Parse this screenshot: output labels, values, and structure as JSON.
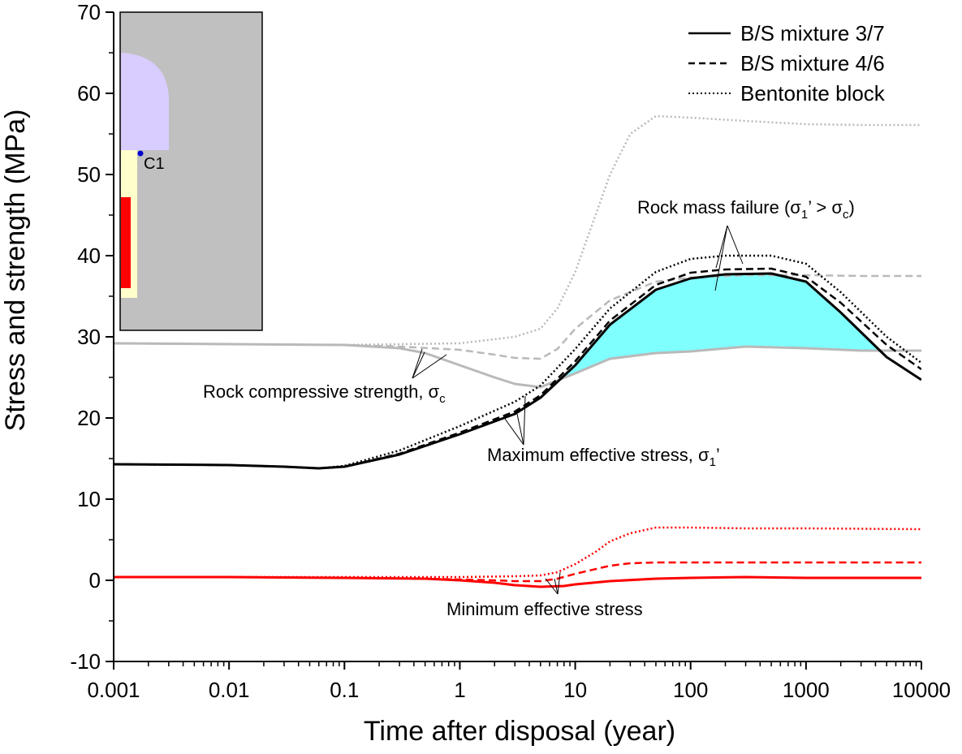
{
  "chart_data": {
    "type": "line",
    "title": "",
    "xlabel": "Time after disposal (year)",
    "ylabel": "Stress and strength (MPa)",
    "xscale": "log",
    "xlim": [
      0.001,
      10000
    ],
    "ylim": [
      -10,
      70
    ],
    "x_ticks": [
      0.001,
      0.01,
      0.1,
      1,
      10,
      100,
      1000,
      10000
    ],
    "x_tick_labels": [
      "0.001",
      "0.01",
      "0.1",
      "1",
      "10",
      "100",
      "1000",
      "10000"
    ],
    "y_ticks": [
      -10,
      0,
      10,
      20,
      30,
      40,
      50,
      60,
      70
    ],
    "y_tick_labels": [
      "-10",
      "0",
      "10",
      "20",
      "30",
      "40",
      "50",
      "60",
      "70"
    ],
    "legend_position": "top-right",
    "legend": [
      {
        "label": "B/S mixture 3/7",
        "style": "solid"
      },
      {
        "label": "B/S mixture 4/6",
        "style": "dashed"
      },
      {
        "label": "Bentonite block",
        "style": "dotted"
      }
    ],
    "colors": {
      "max_stress": "#000000",
      "strength": "#b9b9b9",
      "min_stress": "#ff0000",
      "failure_fill": "#80ffff",
      "inset_rock": "#c0c0c0",
      "inset_buffer": "#d9ccff",
      "inset_backfill": "#ffffcc",
      "inset_canister": "#ff0000",
      "inset_point": "#0000cc"
    },
    "series": [
      {
        "group": "max_effective_stress",
        "style": "solid",
        "x": [
          0.001,
          0.01,
          0.03,
          0.06,
          0.1,
          0.3,
          1,
          3,
          5,
          10,
          20,
          50,
          100,
          200,
          500,
          1000,
          2000,
          5000,
          10000
        ],
        "y": [
          14.3,
          14.2,
          14.0,
          13.8,
          14.0,
          15.5,
          18.0,
          20.5,
          22.5,
          26.5,
          31.5,
          35.8,
          37.2,
          37.7,
          37.8,
          36.8,
          33.0,
          27.5,
          24.7
        ]
      },
      {
        "group": "max_effective_stress",
        "style": "dashed",
        "x": [
          0.001,
          0.01,
          0.03,
          0.06,
          0.1,
          0.3,
          1,
          3,
          5,
          10,
          20,
          50,
          100,
          200,
          500,
          1000,
          2000,
          5000,
          10000
        ],
        "y": [
          14.3,
          14.2,
          14.0,
          13.8,
          14.0,
          15.6,
          18.2,
          20.8,
          22.8,
          27.0,
          32.0,
          36.4,
          37.9,
          38.3,
          38.4,
          37.4,
          34.2,
          29.0,
          26.0
        ]
      },
      {
        "group": "max_effective_stress",
        "style": "dotted",
        "x": [
          0.001,
          0.01,
          0.03,
          0.06,
          0.1,
          0.3,
          1,
          3,
          5,
          10,
          20,
          50,
          100,
          200,
          500,
          1000,
          2000,
          5000,
          10000
        ],
        "y": [
          14.3,
          14.2,
          14.0,
          13.8,
          14.1,
          16.0,
          19.0,
          22.0,
          24.0,
          28.5,
          33.5,
          38.0,
          39.6,
          40.0,
          40.0,
          39.0,
          35.5,
          30.0,
          26.8
        ]
      },
      {
        "group": "rock_compressive_strength",
        "style": "solid",
        "x": [
          0.001,
          0.01,
          0.1,
          0.3,
          0.5,
          1,
          2,
          3,
          5,
          10,
          20,
          50,
          100,
          300,
          1000,
          3000,
          10000
        ],
        "y": [
          29.2,
          29.1,
          29.0,
          28.6,
          28.0,
          26.5,
          25.0,
          24.2,
          23.8,
          25.5,
          27.3,
          28.0,
          28.2,
          28.8,
          28.6,
          28.3,
          28.3
        ]
      },
      {
        "group": "rock_compressive_strength",
        "style": "dashed",
        "x": [
          0.001,
          0.01,
          0.1,
          0.3,
          1,
          2,
          3,
          5,
          7,
          10,
          20,
          50,
          100,
          300,
          1000,
          3000,
          10000
        ],
        "y": [
          29.2,
          29.1,
          29.0,
          28.8,
          28.4,
          27.8,
          27.4,
          27.3,
          28.5,
          31.0,
          34.5,
          36.8,
          37.3,
          37.6,
          37.6,
          37.5,
          37.5
        ]
      },
      {
        "group": "rock_compressive_strength",
        "style": "dotted",
        "x": [
          0.001,
          0.01,
          0.1,
          1,
          3,
          5,
          7,
          10,
          15,
          20,
          30,
          50,
          100,
          300,
          1000,
          3000,
          10000
        ],
        "y": [
          29.2,
          29.1,
          29.0,
          29.2,
          30.0,
          31.0,
          33.5,
          38.0,
          45.0,
          50.0,
          55.0,
          57.2,
          57.0,
          56.6,
          56.2,
          56.1,
          56.1
        ]
      },
      {
        "group": "min_effective_stress",
        "style": "solid",
        "x": [
          0.001,
          0.01,
          0.1,
          0.5,
          1,
          2,
          3,
          5,
          8,
          10,
          20,
          50,
          100,
          300,
          1000,
          10000
        ],
        "y": [
          0.4,
          0.4,
          0.3,
          0.2,
          0.0,
          -0.3,
          -0.6,
          -0.8,
          -0.7,
          -0.5,
          -0.1,
          0.2,
          0.3,
          0.4,
          0.3,
          0.3
        ]
      },
      {
        "group": "min_effective_stress",
        "style": "dashed",
        "x": [
          0.001,
          0.01,
          0.1,
          0.5,
          1,
          2,
          3,
          5,
          7,
          10,
          20,
          30,
          50,
          100,
          300,
          1000,
          10000
        ],
        "y": [
          0.4,
          0.4,
          0.3,
          0.2,
          0.1,
          0.0,
          -0.1,
          -0.1,
          0.2,
          0.8,
          1.8,
          2.1,
          2.2,
          2.2,
          2.2,
          2.2,
          2.2
        ]
      },
      {
        "group": "min_effective_stress",
        "style": "dotted",
        "x": [
          0.001,
          0.01,
          0.1,
          1,
          3,
          5,
          7,
          10,
          15,
          20,
          30,
          50,
          100,
          300,
          1000,
          10000
        ],
        "y": [
          0.4,
          0.4,
          0.4,
          0.4,
          0.5,
          0.6,
          1.0,
          2.0,
          3.5,
          4.8,
          5.8,
          6.5,
          6.5,
          6.4,
          6.4,
          6.3
        ]
      }
    ],
    "annotations": [
      "Rock compressive strength, σ",
      "c",
      "Maximum effective stress, σ",
      "1",
      "’",
      "Minimum effective stress",
      "Rock mass failure (σ",
      "1",
      "’ > σ",
      "c",
      ")"
    ],
    "inset": {
      "point_label": "C1"
    }
  }
}
